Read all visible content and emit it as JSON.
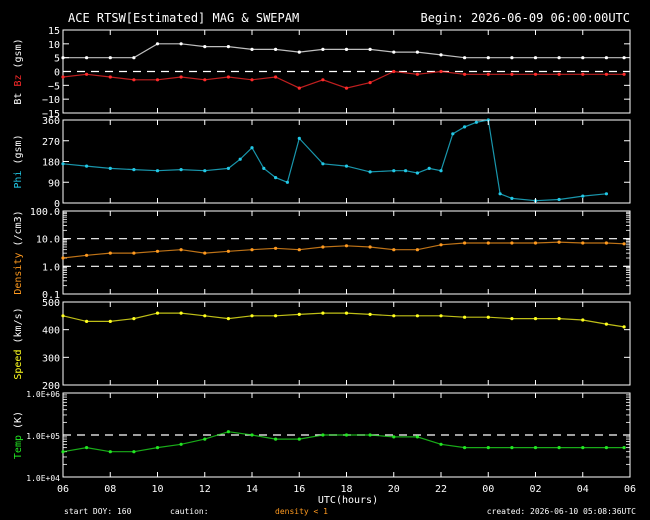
{
  "header": {
    "title": "ACE RTSW[Estimated] MAG & SWEPAM",
    "begin": "Begin: 2026-06-09 06:00:00UTC"
  },
  "footer": {
    "start_doy": "start DOY: 160",
    "caution_label": "caution:",
    "caution_note": "density < 1",
    "created": "created: 2026-06-10 05:08:36UTC"
  },
  "colors": {
    "bt": "#ffffff",
    "bz": "#ff2a2a",
    "phi": "#22c8e6",
    "density": "#ff9a1f",
    "speed": "#ffff1f",
    "temp": "#22e622",
    "caution": "#ff9a1f"
  },
  "chart_data": {
    "type": "scatter",
    "xlabel": "UTC(hours)",
    "x_ticks": [
      "06",
      "08",
      "10",
      "12",
      "14",
      "16",
      "18",
      "20",
      "22",
      "00",
      "02",
      "04",
      "06"
    ],
    "x_range_hours": [
      0,
      24
    ],
    "panels": [
      {
        "id": "mag",
        "ylabel_parts": [
          "Bt",
          "Bz",
          "(gsm)"
        ],
        "ylim": [
          -15,
          15
        ],
        "y_ticks": [
          "15",
          "10",
          "5",
          "0",
          "−5",
          "−10",
          "−15"
        ],
        "y_tick_values": [
          15,
          10,
          5,
          0,
          -5,
          -10,
          -15
        ],
        "dashed_at": [
          0
        ],
        "series": [
          {
            "name": "Bt",
            "x": [
              0.0,
              1.0,
              2.0,
              3.0,
              4.0,
              5.0,
              6.0,
              7.0,
              8.0,
              9.0,
              10.0,
              11.0,
              12.0,
              13.0,
              14.0,
              15.0,
              16.0,
              17.0,
              18.0,
              19.0,
              20.0,
              21.0,
              22.0,
              23.0,
              23.75
            ],
            "y": [
              5,
              5,
              5,
              5,
              10,
              10,
              9,
              9,
              8,
              8,
              7,
              8,
              8,
              8,
              7,
              7,
              6,
              5,
              5,
              5,
              5,
              5,
              5,
              5,
              5
            ]
          },
          {
            "name": "Bz",
            "x": [
              0.0,
              1.0,
              2.0,
              3.0,
              4.0,
              5.0,
              6.0,
              7.0,
              8.0,
              9.0,
              10.0,
              11.0,
              12.0,
              13.0,
              14.0,
              15.0,
              16.0,
              17.0,
              18.0,
              19.0,
              20.0,
              21.0,
              22.0,
              23.0,
              23.75
            ],
            "y": [
              -2,
              -1,
              -2,
              -3,
              -3,
              -2,
              -3,
              -2,
              -3,
              -2,
              -6,
              -3,
              -6,
              -4,
              0,
              -1,
              0,
              -1,
              -1,
              -1,
              -1,
              -1,
              -1,
              -1,
              -1
            ]
          }
        ]
      },
      {
        "id": "phi",
        "ylabel_parts": [
          "Phi",
          "(gsm)"
        ],
        "ylim": [
          0,
          360
        ],
        "y_ticks": [
          "360",
          "270",
          "180",
          "90",
          "0"
        ],
        "y_tick_values": [
          360,
          270,
          180,
          90,
          0
        ],
        "dashed_at": [],
        "series": [
          {
            "name": "Phi",
            "x": [
              0.0,
              1.0,
              2.0,
              3.0,
              4.0,
              5.0,
              6.0,
              7.0,
              7.5,
              8.0,
              8.5,
              9.0,
              9.5,
              10.0,
              11.0,
              12.0,
              13.0,
              14.0,
              14.5,
              15.0,
              15.5,
              16.0,
              16.5,
              17.0,
              17.5,
              18.0,
              18.5,
              19.0,
              20.0,
              21.0,
              22.0,
              23.0
            ],
            "y": [
              170,
              160,
              150,
              145,
              140,
              145,
              140,
              150,
              190,
              240,
              150,
              110,
              90,
              280,
              170,
              160,
              135,
              140,
              140,
              130,
              150,
              140,
              300,
              330,
              350,
              360,
              40,
              20,
              10,
              15,
              30,
              40
            ]
          }
        ]
      },
      {
        "id": "density",
        "ylabel_parts": [
          "Density",
          "(/cm3)"
        ],
        "scale": "log",
        "ylim": [
          0.1,
          100
        ],
        "y_ticks": [
          "100.0",
          "10.0",
          "1.0",
          "0.1"
        ],
        "y_tick_values": [
          100,
          10,
          1,
          0.1
        ],
        "dashed_at": [
          10,
          1
        ],
        "series": [
          {
            "name": "Density",
            "x": [
              0.0,
              1.0,
              2.0,
              3.0,
              4.0,
              5.0,
              6.0,
              7.0,
              8.0,
              9.0,
              10.0,
              11.0,
              12.0,
              13.0,
              14.0,
              15.0,
              16.0,
              17.0,
              18.0,
              19.0,
              20.0,
              21.0,
              22.0,
              23.0,
              23.75
            ],
            "y": [
              2.0,
              2.5,
              3.0,
              3.0,
              3.5,
              4.0,
              3.0,
              3.5,
              4.0,
              4.5,
              4.0,
              5.0,
              5.5,
              5.0,
              4.0,
              4.0,
              6.0,
              7.0,
              7.0,
              7.0,
              7.0,
              7.5,
              7.0,
              7.0,
              6.5
            ]
          }
        ]
      },
      {
        "id": "speed",
        "ylabel_parts": [
          "Speed",
          "(km/s)"
        ],
        "ylim": [
          200,
          500
        ],
        "y_ticks": [
          "500",
          "400",
          "300",
          "200"
        ],
        "y_tick_values": [
          500,
          400,
          300,
          200
        ],
        "dashed_at": [],
        "series": [
          {
            "name": "Speed",
            "x": [
              0.0,
              1.0,
              2.0,
              3.0,
              4.0,
              5.0,
              6.0,
              7.0,
              8.0,
              9.0,
              10.0,
              11.0,
              12.0,
              13.0,
              14.0,
              15.0,
              16.0,
              17.0,
              18.0,
              19.0,
              20.0,
              21.0,
              22.0,
              23.0,
              23.75
            ],
            "y": [
              450,
              430,
              430,
              440,
              460,
              460,
              450,
              440,
              450,
              450,
              455,
              460,
              460,
              455,
              450,
              450,
              450,
              445,
              445,
              440,
              440,
              440,
              435,
              420,
              410
            ]
          }
        ]
      },
      {
        "id": "temp",
        "ylabel_parts": [
          "Temp",
          "(K)"
        ],
        "scale": "log",
        "ylim": [
          10000,
          1000000
        ],
        "y_ticks": [
          "1.0E+06",
          "1.0E+05",
          "1.0E+04"
        ],
        "y_tick_values": [
          1000000,
          100000,
          10000
        ],
        "dashed_at": [
          100000
        ],
        "series": [
          {
            "name": "Temp",
            "x": [
              0.0,
              1.0,
              2.0,
              3.0,
              4.0,
              5.0,
              6.0,
              7.0,
              8.0,
              9.0,
              10.0,
              11.0,
              12.0,
              13.0,
              14.0,
              15.0,
              16.0,
              17.0,
              18.0,
              19.0,
              20.0,
              21.0,
              22.0,
              23.0,
              23.75
            ],
            "y": [
              40000,
              50000,
              40000,
              40000,
              50000,
              60000,
              80000,
              120000,
              100000,
              80000,
              80000,
              100000,
              100000,
              100000,
              90000,
              90000,
              60000,
              50000,
              50000,
              50000,
              50000,
              50000,
              50000,
              50000,
              50000
            ]
          }
        ]
      }
    ]
  }
}
